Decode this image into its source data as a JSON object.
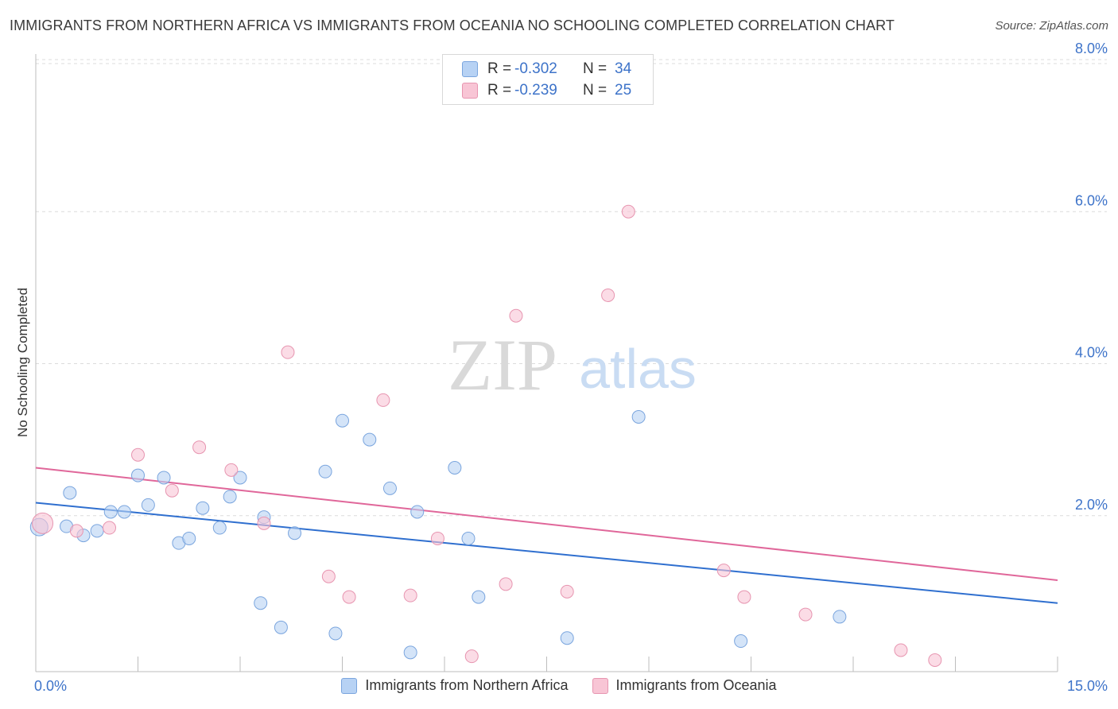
{
  "title": "IMMIGRANTS FROM NORTHERN AFRICA VS IMMIGRANTS FROM OCEANIA NO SCHOOLING COMPLETED CORRELATION CHART",
  "source": "Source: ZipAtlas.com",
  "watermark": {
    "zip": "ZIP",
    "atlas": "atlas"
  },
  "legend_top": [
    {
      "r_label": "R =",
      "r_value": "-0.302",
      "n_label": "N =",
      "n_value": "34"
    },
    {
      "r_label": "R =",
      "r_value": "-0.239",
      "n_label": "N =",
      "n_value": "25"
    }
  ],
  "colors": {
    "series_a_fill": "#b7d2f4",
    "series_a_stroke": "#7aa5de",
    "series_a_line": "#2f6fcf",
    "series_b_fill": "#f8c5d5",
    "series_b_stroke": "#e795b0",
    "series_b_line": "#e0679a",
    "tick_label": "#3d73c9",
    "grid": "#dcdcdc"
  },
  "chart_data": {
    "type": "scatter",
    "title": "IMMIGRANTS FROM NORTHERN AFRICA VS IMMIGRANTS FROM OCEANIA NO SCHOOLING COMPLETED CORRELATION CHART",
    "xlabel": "",
    "ylabel": "No Schooling Completed",
    "xlim": [
      0,
      15
    ],
    "ylim": [
      0,
      8
    ],
    "x_tick_labels": [
      "0.0%",
      "15.0%"
    ],
    "y_ticks": [
      2,
      4,
      6,
      8
    ],
    "y_tick_labels": [
      "2.0%",
      "4.0%",
      "6.0%",
      "8.0%"
    ],
    "grid": true,
    "legend_position": "top-center",
    "series": [
      {
        "name": "Immigrants from Northern Africa",
        "trend": {
          "x": [
            0,
            15
          ],
          "y": [
            2.17,
            0.85
          ]
        },
        "points": [
          [
            0.05,
            1.85
          ],
          [
            0.45,
            1.86
          ],
          [
            0.5,
            2.3
          ],
          [
            0.7,
            1.74
          ],
          [
            0.9,
            1.8
          ],
          [
            1.1,
            2.05
          ],
          [
            1.3,
            2.05
          ],
          [
            1.5,
            2.53
          ],
          [
            1.65,
            2.14
          ],
          [
            1.88,
            2.5
          ],
          [
            2.1,
            1.64
          ],
          [
            2.25,
            1.7
          ],
          [
            2.45,
            2.1
          ],
          [
            2.7,
            1.84
          ],
          [
            2.85,
            2.25
          ],
          [
            3.0,
            2.5
          ],
          [
            3.35,
            1.98
          ],
          [
            3.3,
            0.85
          ],
          [
            3.6,
            0.53
          ],
          [
            3.8,
            1.77
          ],
          [
            4.25,
            2.58
          ],
          [
            4.4,
            0.45
          ],
          [
            4.5,
            3.25
          ],
          [
            4.9,
            3.0
          ],
          [
            5.2,
            2.36
          ],
          [
            5.5,
            0.2
          ],
          [
            5.6,
            2.05
          ],
          [
            6.15,
            2.63
          ],
          [
            6.35,
            1.7
          ],
          [
            6.5,
            0.93
          ],
          [
            7.8,
            0.39
          ],
          [
            8.85,
            3.3
          ],
          [
            10.35,
            0.35
          ],
          [
            11.8,
            0.67
          ]
        ]
      },
      {
        "name": "Immigrants from Oceania",
        "trend": {
          "x": [
            0,
            15
          ],
          "y": [
            2.63,
            1.15
          ]
        },
        "points": [
          [
            0.1,
            1.9
          ],
          [
            0.6,
            1.8
          ],
          [
            1.08,
            1.84
          ],
          [
            1.5,
            2.8
          ],
          [
            2.0,
            2.33
          ],
          [
            2.4,
            2.9
          ],
          [
            2.87,
            2.6
          ],
          [
            3.35,
            1.9
          ],
          [
            3.7,
            4.15
          ],
          [
            4.3,
            1.2
          ],
          [
            4.6,
            0.93
          ],
          [
            5.1,
            3.52
          ],
          [
            5.5,
            0.95
          ],
          [
            5.9,
            1.7
          ],
          [
            6.4,
            0.15
          ],
          [
            6.9,
            1.1
          ],
          [
            7.05,
            4.63
          ],
          [
            7.8,
            1.0
          ],
          [
            8.4,
            4.9
          ],
          [
            8.7,
            6.0
          ],
          [
            10.1,
            1.28
          ],
          [
            10.4,
            0.93
          ],
          [
            11.3,
            0.7
          ],
          [
            12.7,
            0.23
          ],
          [
            13.2,
            0.1
          ]
        ]
      }
    ]
  }
}
